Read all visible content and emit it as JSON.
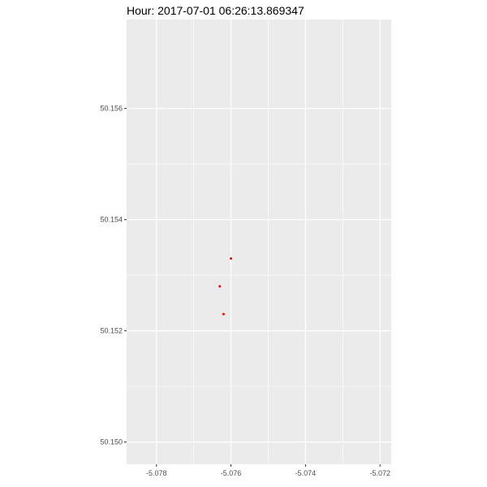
{
  "chart_data": {
    "type": "scatter",
    "title": "Hour: 2017-07-01 06:26:13.869347",
    "xlabel": "",
    "ylabel": "",
    "xlim": [
      -5.0788,
      -5.0717
    ],
    "ylim": [
      50.1496,
      50.1576
    ],
    "x_ticks": [
      -5.078,
      -5.076,
      -5.074,
      -5.072
    ],
    "x_tick_labels": [
      "-5.078",
      "-5.076",
      "-5.074",
      "-5.072"
    ],
    "y_ticks": [
      50.15,
      50.152,
      50.154,
      50.156
    ],
    "y_tick_labels": [
      "50.150",
      "50.152",
      "50.154",
      "50.156"
    ],
    "grid": true,
    "point_color": "#ff0000",
    "panel_background": "#ebebeb",
    "grid_color": "#ffffff",
    "points": [
      {
        "x": -5.076,
        "y": 50.1533
      },
      {
        "x": -5.0763,
        "y": 50.1528
      },
      {
        "x": -5.0762,
        "y": 50.1523
      }
    ]
  }
}
